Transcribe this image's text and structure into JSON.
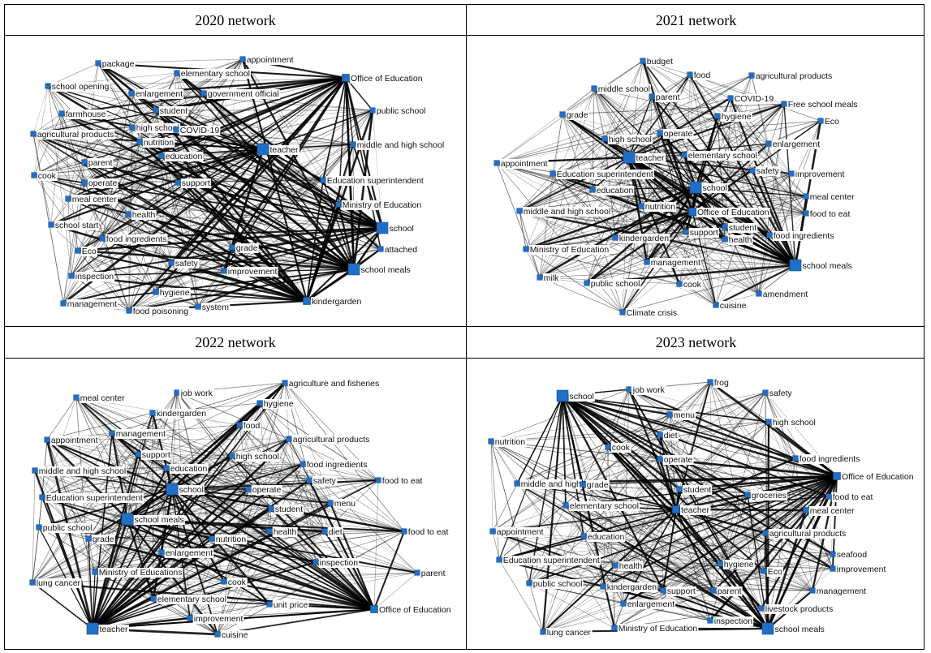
{
  "panels": [
    {
      "title": "2020 network",
      "edge_seed": 11,
      "nodes": [
        {
          "label": "package",
          "size": 1
        },
        {
          "label": "appointment",
          "size": 1
        },
        {
          "label": "Office of Education",
          "size": 2
        },
        {
          "label": "school opening",
          "size": 1
        },
        {
          "label": "elementary school",
          "size": 1
        },
        {
          "label": "enlargement",
          "size": 1
        },
        {
          "label": "government official",
          "size": 1
        },
        {
          "label": "farmhouse",
          "size": 1
        },
        {
          "label": "student",
          "size": 1
        },
        {
          "label": "public school",
          "size": 1
        },
        {
          "label": "high school",
          "size": 1
        },
        {
          "label": "COVID-19",
          "size": 1
        },
        {
          "label": "agricultural products",
          "size": 1
        },
        {
          "label": "nutrition",
          "size": 1
        },
        {
          "label": "teacher",
          "size": 3
        },
        {
          "label": "middle and high school",
          "size": 1
        },
        {
          "label": "parent",
          "size": 1
        },
        {
          "label": "education",
          "size": 1
        },
        {
          "label": "cook",
          "size": 1
        },
        {
          "label": "operate",
          "size": 1
        },
        {
          "label": "support",
          "size": 1
        },
        {
          "label": "Education superintendent",
          "size": 1
        },
        {
          "label": "meal center",
          "size": 1
        },
        {
          "label": "Ministry of Education",
          "size": 1
        },
        {
          "label": "health",
          "size": 1
        },
        {
          "label": "school start",
          "size": 1
        },
        {
          "label": "school",
          "size": 3
        },
        {
          "label": "food ingredients",
          "size": 1
        },
        {
          "label": "Eco",
          "size": 1
        },
        {
          "label": "grade",
          "size": 1
        },
        {
          "label": "attached",
          "size": 1
        },
        {
          "label": "safety",
          "size": 1
        },
        {
          "label": "inspection",
          "size": 1
        },
        {
          "label": "improvement",
          "size": 1
        },
        {
          "label": "school meals",
          "size": 3
        },
        {
          "label": "hygiene",
          "size": 1
        },
        {
          "label": "management",
          "size": 1
        },
        {
          "label": "food poisoning",
          "size": 1
        },
        {
          "label": "system",
          "size": 1
        },
        {
          "label": "kindergarden",
          "size": 2
        }
      ]
    },
    {
      "title": "2021 network",
      "edge_seed": 23,
      "nodes": [
        {
          "label": "budget",
          "size": 1
        },
        {
          "label": "food",
          "size": 1
        },
        {
          "label": "agricultural products",
          "size": 1
        },
        {
          "label": "middle school",
          "size": 1
        },
        {
          "label": "parent",
          "size": 1
        },
        {
          "label": "COVID-19",
          "size": 1
        },
        {
          "label": "Free school meals",
          "size": 1
        },
        {
          "label": "grade",
          "size": 1
        },
        {
          "label": "hygiene",
          "size": 1
        },
        {
          "label": "Eco",
          "size": 1
        },
        {
          "label": "high school",
          "size": 1
        },
        {
          "label": "operate",
          "size": 1
        },
        {
          "label": "enlargement",
          "size": 1
        },
        {
          "label": "teacher",
          "size": 3
        },
        {
          "label": "elementary school",
          "size": 1
        },
        {
          "label": "appointment",
          "size": 1
        },
        {
          "label": "Education superintendent",
          "size": 1
        },
        {
          "label": "safety",
          "size": 1
        },
        {
          "label": "improvement",
          "size": 1
        },
        {
          "label": "school",
          "size": 3
        },
        {
          "label": "education",
          "size": 1
        },
        {
          "label": "meal center",
          "size": 1
        },
        {
          "label": "nutrition",
          "size": 1
        },
        {
          "label": "middle and high school",
          "size": 1
        },
        {
          "label": "Office of Education",
          "size": 2
        },
        {
          "label": "food to eat",
          "size": 1
        },
        {
          "label": "student",
          "size": 1
        },
        {
          "label": "kindergarden",
          "size": 1
        },
        {
          "label": "support",
          "size": 1
        },
        {
          "label": "food ingredients",
          "size": 1
        },
        {
          "label": "health",
          "size": 1
        },
        {
          "label": "Ministry of Education",
          "size": 1
        },
        {
          "label": "management",
          "size": 1
        },
        {
          "label": "school meals",
          "size": 3
        },
        {
          "label": "milk",
          "size": 1
        },
        {
          "label": "public school",
          "size": 1
        },
        {
          "label": "cook",
          "size": 1
        },
        {
          "label": "amendment",
          "size": 1
        },
        {
          "label": "cuisine",
          "size": 1
        },
        {
          "label": "Climate crisis",
          "size": 1
        }
      ]
    },
    {
      "title": "2022 network",
      "edge_seed": 37,
      "nodes": [
        {
          "label": "agriculture and fisheries",
          "size": 1
        },
        {
          "label": "job work",
          "size": 1
        },
        {
          "label": "meal center",
          "size": 1
        },
        {
          "label": "hygiene",
          "size": 1
        },
        {
          "label": "kindergarden",
          "size": 1
        },
        {
          "label": "food",
          "size": 1
        },
        {
          "label": "appointment",
          "size": 1
        },
        {
          "label": "management",
          "size": 1
        },
        {
          "label": "agricultural products",
          "size": 1
        },
        {
          "label": "support",
          "size": 1
        },
        {
          "label": "high school",
          "size": 1
        },
        {
          "label": "food ingredients",
          "size": 1
        },
        {
          "label": "middle and high school",
          "size": 1
        },
        {
          "label": "education",
          "size": 1
        },
        {
          "label": "safety",
          "size": 1
        },
        {
          "label": "food to eat",
          "size": 1
        },
        {
          "label": "school",
          "size": 3
        },
        {
          "label": "operate",
          "size": 1
        },
        {
          "label": "Education superintendent",
          "size": 1
        },
        {
          "label": "menu",
          "size": 1
        },
        {
          "label": "student",
          "size": 1
        },
        {
          "label": "school meals",
          "size": 3
        },
        {
          "label": "public school",
          "size": 1
        },
        {
          "label": "health",
          "size": 1
        },
        {
          "label": "diet",
          "size": 1
        },
        {
          "label": "food to eat",
          "size": 1
        },
        {
          "label": "grade",
          "size": 1
        },
        {
          "label": "nutrition",
          "size": 1
        },
        {
          "label": "enlargement",
          "size": 1
        },
        {
          "label": "inspection",
          "size": 1
        },
        {
          "label": "parent",
          "size": 1
        },
        {
          "label": "Ministry of Educations",
          "size": 1
        },
        {
          "label": "lung cancer",
          "size": 1
        },
        {
          "label": "cook",
          "size": 1
        },
        {
          "label": "elementary school",
          "size": 1
        },
        {
          "label": "unit price",
          "size": 1
        },
        {
          "label": "Office of Education",
          "size": 2
        },
        {
          "label": "improvement",
          "size": 1
        },
        {
          "label": "teacher",
          "size": 3
        },
        {
          "label": "cuisine",
          "size": 1
        }
      ]
    },
    {
      "title": "2023 network",
      "edge_seed": 53,
      "nodes": [
        {
          "label": "frog",
          "size": 1
        },
        {
          "label": "school",
          "size": 3
        },
        {
          "label": "job work",
          "size": 1
        },
        {
          "label": "safety",
          "size": 1
        },
        {
          "label": "menu",
          "size": 1
        },
        {
          "label": "high school",
          "size": 1
        },
        {
          "label": "diet",
          "size": 1
        },
        {
          "label": "nutrition",
          "size": 1
        },
        {
          "label": "cook",
          "size": 1
        },
        {
          "label": "operate",
          "size": 1
        },
        {
          "label": "food ingredients",
          "size": 1
        },
        {
          "label": "Office of Education",
          "size": 2
        },
        {
          "label": "middle and high",
          "size": 1
        },
        {
          "label": "grade",
          "size": 1
        },
        {
          "label": "student",
          "size": 1
        },
        {
          "label": "groceries",
          "size": 1
        },
        {
          "label": "food to eat",
          "size": 1
        },
        {
          "label": "elementary school",
          "size": 1
        },
        {
          "label": "teacher",
          "size": 2
        },
        {
          "label": "meal center",
          "size": 1
        },
        {
          "label": "appointment",
          "size": 1
        },
        {
          "label": "education",
          "size": 1
        },
        {
          "label": "agricultural products",
          "size": 1
        },
        {
          "label": "seafood",
          "size": 1
        },
        {
          "label": "Education superintendent",
          "size": 1
        },
        {
          "label": "health",
          "size": 1
        },
        {
          "label": "hygiene",
          "size": 1
        },
        {
          "label": "Eco",
          "size": 1
        },
        {
          "label": "improvement",
          "size": 1
        },
        {
          "label": "public school",
          "size": 1
        },
        {
          "label": "kindergarden",
          "size": 1
        },
        {
          "label": "support",
          "size": 1
        },
        {
          "label": "parent",
          "size": 1
        },
        {
          "label": "management",
          "size": 1
        },
        {
          "label": "enlargement",
          "size": 1
        },
        {
          "label": "livestock products",
          "size": 1
        },
        {
          "label": "inspection",
          "size": 1
        },
        {
          "label": "lung cancer",
          "size": 1
        },
        {
          "label": "Ministry of Education",
          "size": 1
        },
        {
          "label": "school meals",
          "size": 3
        }
      ]
    }
  ]
}
